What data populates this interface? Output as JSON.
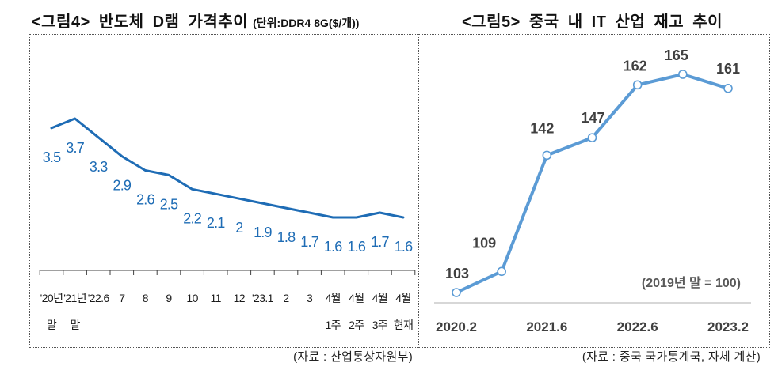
{
  "chart_data": [
    {
      "type": "line",
      "title": "<그림4> 반도체 D램 가격추이",
      "subtitle": "(단위:DDR4 8G($/개))",
      "categories": [
        [
          "'20년",
          "말"
        ],
        [
          "'21년",
          "말"
        ],
        [
          "'22.6"
        ],
        [
          "7"
        ],
        [
          "8"
        ],
        [
          "9"
        ],
        [
          "10"
        ],
        [
          "11"
        ],
        [
          "12"
        ],
        [
          "'23.1"
        ],
        [
          "2"
        ],
        [
          "3"
        ],
        [
          "4월",
          "1주"
        ],
        [
          "4월",
          "2주"
        ],
        [
          "4월",
          "3주"
        ],
        [
          "4월",
          "현재"
        ]
      ],
      "series": [
        {
          "values": [
            3.5,
            3.7,
            3.3,
            2.9,
            2.6,
            2.5,
            2.2,
            2.1,
            2,
            1.9,
            1.8,
            1.7,
            1.6,
            1.6,
            1.7,
            1.6
          ],
          "color": "#1e6cb5"
        }
      ],
      "markers": false,
      "grid": false,
      "source": "(자료 : 산업통상자원부)"
    },
    {
      "type": "line",
      "title": "<그림5> 중국 내 IT 산업 재고 추이",
      "categories": [
        "2020.2",
        null,
        "2021.6",
        null,
        "2022.6",
        null,
        "2023.2"
      ],
      "series": [
        {
          "values": [
            103,
            109,
            142,
            147,
            162,
            165,
            161
          ],
          "color": "#5b9bd5"
        }
      ],
      "annotation": "(2019년 말 = 100)",
      "markers": true,
      "grid": false,
      "source": "(자료 : 중국 국가통계국, 자체 계산)"
    }
  ]
}
